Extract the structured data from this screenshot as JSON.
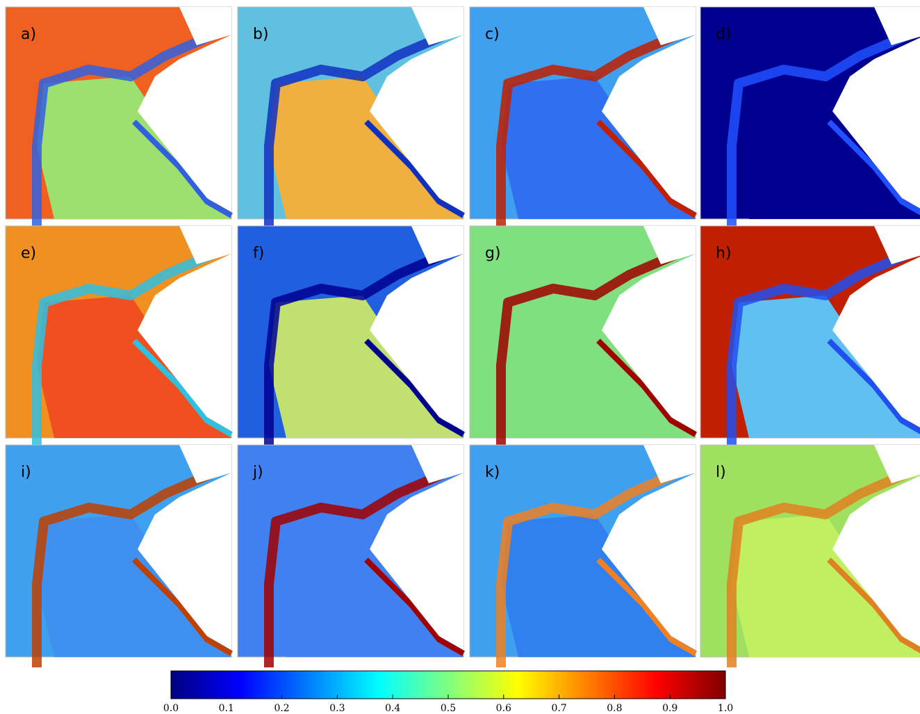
{
  "panels": [
    {
      "label": "a)",
      "colors": [
        "#f06020",
        "#9ee070",
        "#3060e0"
      ]
    },
    {
      "label": "b)",
      "colors": [
        "#60c0e0",
        "#f0b040",
        "#1030c0"
      ]
    },
    {
      "label": "c)",
      "colors": [
        "#40a0f0",
        "#3070f0",
        "#c02000"
      ]
    },
    {
      "label": "d)",
      "colors": [
        "#000090",
        "#000090",
        "#2050ff"
      ]
    },
    {
      "label": "e)",
      "colors": [
        "#f09020",
        "#f05020",
        "#30c0e0"
      ]
    },
    {
      "label": "f)",
      "colors": [
        "#2060e0",
        "#c0e070",
        "#000090"
      ]
    },
    {
      "label": "g)",
      "colors": [
        "#80e080",
        "#80e080",
        "#a00000"
      ]
    },
    {
      "label": "h)",
      "colors": [
        "#c02000",
        "#60c0f0",
        "#2050f0"
      ]
    },
    {
      "label": "i)",
      "colors": [
        "#40a0f0",
        "#4090f0",
        "#c04000"
      ]
    },
    {
      "label": "j)",
      "colors": [
        "#4080f0",
        "#4080f0",
        "#a00000"
      ]
    },
    {
      "label": "k)",
      "colors": [
        "#40a0f0",
        "#3080f0",
        "#f08020"
      ]
    },
    {
      "label": "l)",
      "colors": [
        "#a0e060",
        "#c0f060",
        "#e08020"
      ]
    }
  ],
  "colorbar": {
    "lim": [
      0,
      1
    ],
    "ticks": [
      {
        "value": 0,
        "label": "0.0"
      },
      0.1,
      0.2,
      0.3,
      0.4,
      0.5,
      0.6,
      0.7,
      0.8,
      0.9,
      {
        "value": 1,
        "label": "1.0"
      }
    ]
  }
}
